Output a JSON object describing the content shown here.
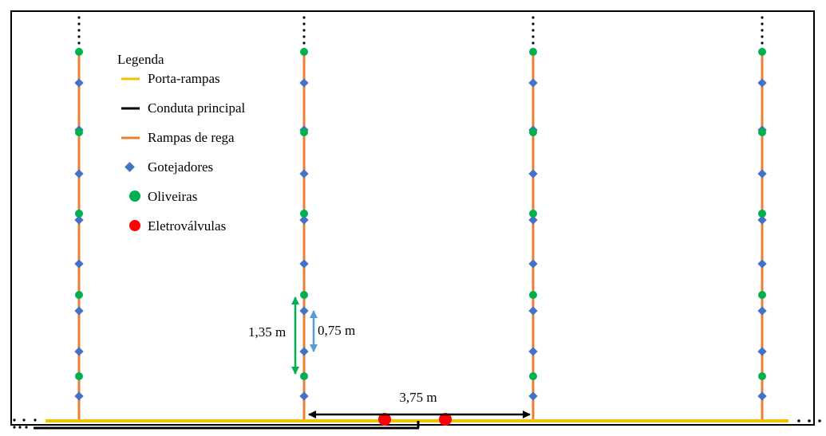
{
  "legend": {
    "title": "Legenda",
    "items": [
      {
        "label": "Porta-rampas",
        "symbol": "line",
        "color": "#f5c000",
        "icon": "yellow-line-icon"
      },
      {
        "label": "Conduta principal",
        "symbol": "line",
        "color": "#000000",
        "icon": "black-line-icon"
      },
      {
        "label": "Rampas de rega",
        "symbol": "line",
        "color": "#ed7d31",
        "icon": "orange-line-icon"
      },
      {
        "label": "Gotejadores",
        "symbol": "diamond",
        "color": "#4472c4",
        "icon": "blue-diamond-icon"
      },
      {
        "label": "Oliveiras",
        "symbol": "circle",
        "color": "#00b050",
        "icon": "green-circle-icon"
      },
      {
        "label": "Eletroválvulas",
        "symbol": "circle",
        "color": "#ff0000",
        "icon": "red-circle-icon"
      }
    ]
  },
  "dimensions": {
    "tree_spacing": "1,35 m",
    "dripper_spacing": "0,75 m",
    "row_spacing": "3,75 m"
  },
  "colors": {
    "porta_rampas": "#f5c000",
    "conduta": "#000000",
    "rampa": "#ed7d31",
    "gotejador": "#4472c4",
    "oliveira": "#00b050",
    "eletrovalvula": "#ff0000",
    "tree_arrow": "#00b050",
    "dripper_arrow": "#5b9bd5",
    "frame": "#000000"
  }
}
